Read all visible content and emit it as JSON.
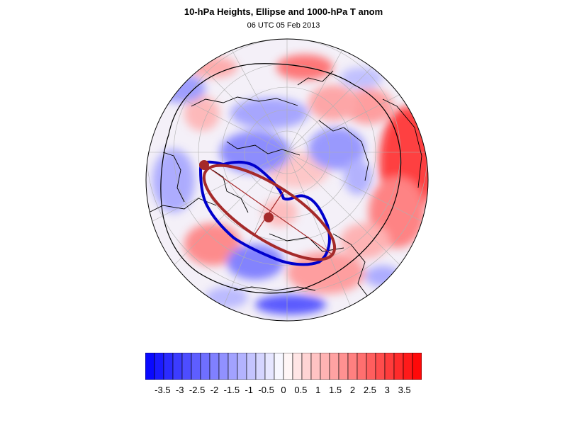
{
  "title": "10-hPa Heights, Ellipse and 1000-hPa T anom",
  "subtitle": "06 UTC 05 Feb 2013",
  "colorbar": {
    "labels": [
      "-3.5",
      "-3",
      "-2.5",
      "-2",
      "-1.5",
      "-1",
      "-0.5",
      "0",
      "0.5",
      "1",
      "1.5",
      "2",
      "2.5",
      "3",
      "3.5"
    ],
    "min": -4,
    "max": 4,
    "levels": 30,
    "cold_color": "#0000ff",
    "warm_color": "#ff0000"
  },
  "map": {
    "projection": "polar-stereographic",
    "contour_color": "#0000cc",
    "ellipse_color": "#a52a2a",
    "coastline_color": "#000000"
  }
}
